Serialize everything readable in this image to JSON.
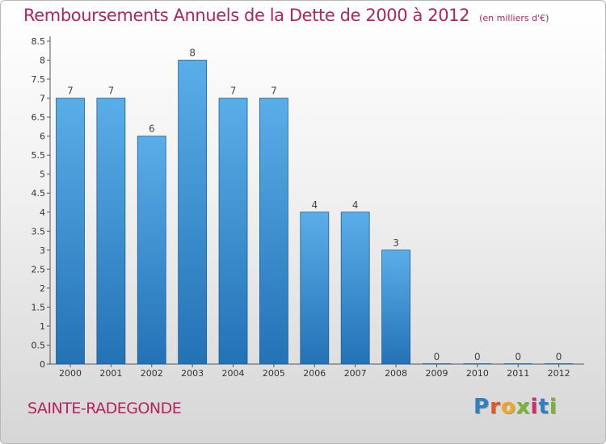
{
  "title": "Remboursements Annuels de la Dette de 2000 à 2012",
  "unit": "(en milliers d'€)",
  "commune": "SAINTE-RADEGONDE",
  "logo": {
    "letters": [
      "P",
      "r",
      "o",
      "x",
      "i",
      "t",
      "i"
    ],
    "colors": [
      "#2f7fc4",
      "#e1572a",
      "#f2a51f",
      "#7ab532",
      "#d22a6d",
      "#2f7fc4",
      "#7ab532"
    ]
  },
  "colors": {
    "bar_top": "#5aaee8",
    "bar_bottom": "#2372b6",
    "title": "#b2245e"
  },
  "chart_data": {
    "type": "bar",
    "categories": [
      "2000",
      "2001",
      "2002",
      "2003",
      "2004",
      "2005",
      "2006",
      "2007",
      "2008",
      "2009",
      "2010",
      "2011",
      "2012"
    ],
    "values": [
      7,
      7,
      6,
      8,
      7,
      7,
      4,
      4,
      3,
      0,
      0,
      0,
      0
    ],
    "ylim": [
      0,
      8.5
    ],
    "yticks": [
      "0",
      "0.5",
      "1",
      "1.5",
      "2",
      "2.5",
      "3",
      "3.5",
      "4",
      "4.5",
      "5",
      "5.5",
      "6",
      "6.5",
      "7",
      "7.5",
      "8",
      "8.5"
    ],
    "grid": false,
    "xlabel": "",
    "ylabel": ""
  }
}
